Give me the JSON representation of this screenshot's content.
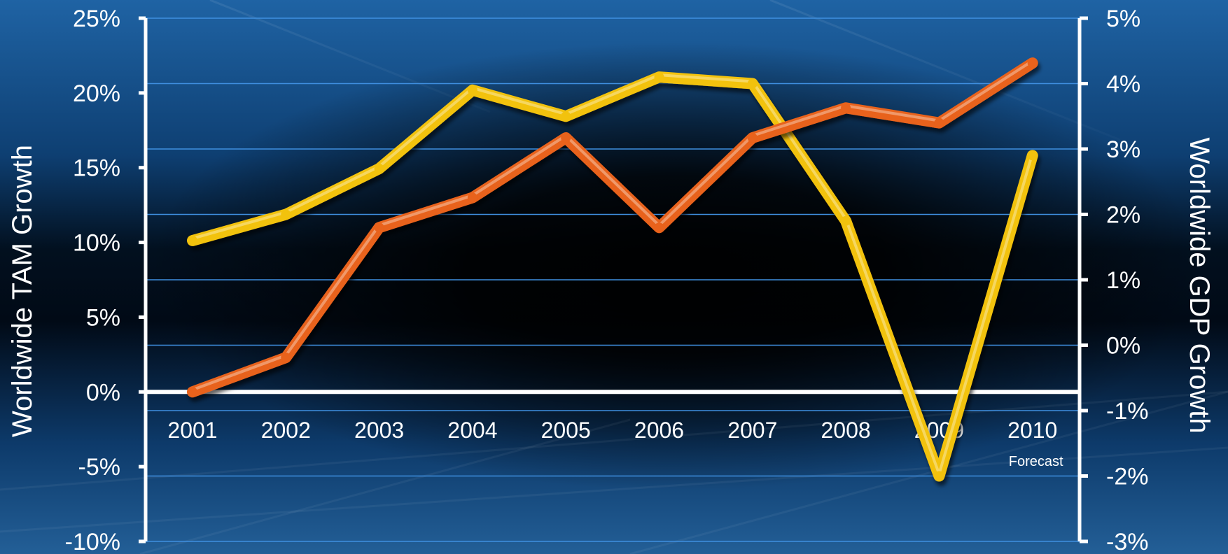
{
  "chart_data": {
    "type": "line",
    "categories": [
      "2001",
      "2002",
      "2003",
      "2004",
      "2005",
      "2006",
      "2007",
      "2008",
      "2009",
      "2010"
    ],
    "category_note": {
      "category": "2010",
      "text": "Forecast"
    },
    "series": [
      {
        "axis": "left",
        "color": "#e8621a",
        "values": [
          0,
          2.3,
          11,
          13,
          17,
          11,
          17,
          19,
          18,
          22
        ]
      },
      {
        "axis": "right",
        "color": "#f2c20a",
        "values": [
          1.6,
          2.0,
          2.7,
          3.9,
          3.5,
          4.1,
          4.0,
          1.9,
          -2.0,
          2.9
        ]
      }
    ],
    "ylabel": "Worldwide TAM Growth",
    "ylim": [
      -10,
      25
    ],
    "y_ticks": [
      "25%",
      "20%",
      "15%",
      "10%",
      "5%",
      "0%",
      "-5%",
      "-10%"
    ],
    "y2label": "Worldwide GDP Growth",
    "y2lim": [
      -3,
      5
    ],
    "y2_ticks": [
      "5%",
      "4%",
      "3%",
      "2%",
      "1%",
      "0%",
      "-1%",
      "-2%",
      "-3%"
    ],
    "grid": true,
    "colors": {
      "gridline": "#3f8fe0",
      "axis": "#ffffff",
      "tam_line": "#e8621a",
      "gdp_line": "#f2c20a"
    }
  }
}
